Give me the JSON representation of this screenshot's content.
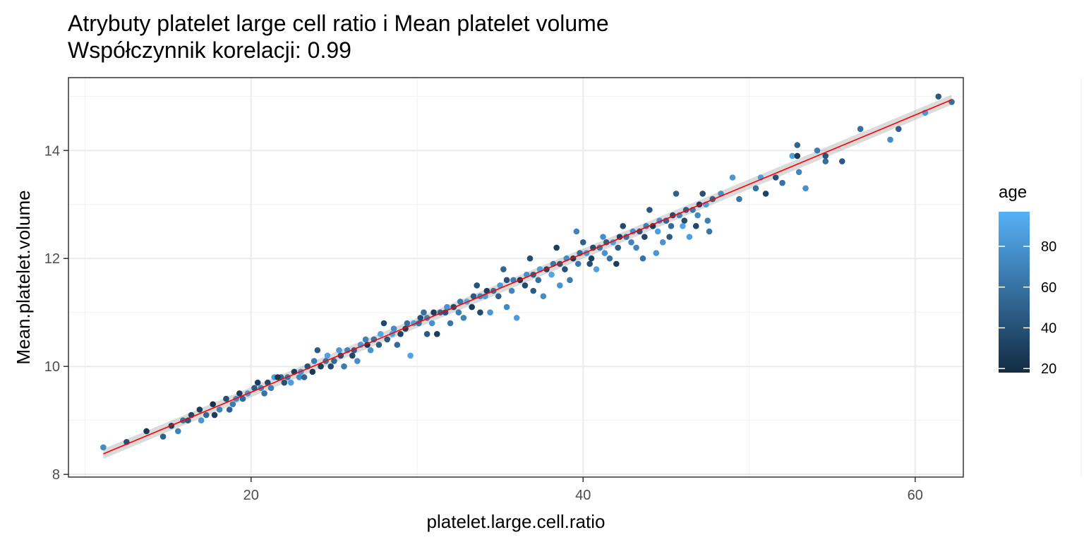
{
  "chart_data": {
    "type": "scatter",
    "title": "Atrybuty platelet large cell ratio i Mean platelet volume",
    "subtitle": "Współczynnik korelacji: 0.99",
    "xlabel": "platelet.large.cell.ratio",
    "ylabel": "Mean.platelet.volume",
    "xlim": [
      9,
      62.9
    ],
    "ylim": [
      7.95,
      15.35
    ],
    "x_ticks": [
      20,
      40,
      60
    ],
    "y_ticks": [
      8,
      10,
      12,
      14
    ],
    "x_tick_labels": [
      "20",
      "40",
      "60"
    ],
    "y_tick_labels": [
      "8",
      "10",
      "12",
      "14"
    ],
    "grid": true,
    "color": {
      "legend_title": "age",
      "range": [
        18,
        97
      ],
      "ticks": [
        20,
        40,
        60,
        80
      ],
      "tick_labels": [
        "20",
        "40",
        "60",
        "80"
      ],
      "low_color": "#132B43",
      "high_color": "#56B1F7",
      "legend_position": "right"
    },
    "trend_line": {
      "method": "linear fit",
      "color": "#FF0000",
      "x": [
        11.1,
        62.2
      ],
      "y": [
        8.38,
        14.94
      ]
    },
    "points": [
      [
        11.1,
        8.5,
        75
      ],
      [
        13.7,
        8.8,
        25
      ],
      [
        14.7,
        8.7,
        50
      ],
      [
        15.2,
        8.9,
        30
      ],
      [
        15.9,
        9.0,
        60
      ],
      [
        16.4,
        9.1,
        35
      ],
      [
        16.9,
        9.2,
        28
      ],
      [
        17.3,
        9.1,
        55
      ],
      [
        17.7,
        9.3,
        22
      ],
      [
        18.1,
        9.2,
        70
      ],
      [
        18.5,
        9.4,
        40
      ],
      [
        18.9,
        9.3,
        65
      ],
      [
        19.3,
        9.5,
        30
      ],
      [
        19.8,
        9.5,
        80
      ],
      [
        20.2,
        9.6,
        45
      ],
      [
        20.6,
        9.6,
        72
      ],
      [
        21.0,
        9.7,
        35
      ],
      [
        21.4,
        9.8,
        85
      ],
      [
        21.8,
        9.8,
        50
      ],
      [
        22.2,
        9.8,
        62
      ],
      [
        22.6,
        9.9,
        28
      ],
      [
        23.0,
        9.9,
        78
      ],
      [
        23.4,
        10.0,
        42
      ],
      [
        23.8,
        10.1,
        66
      ],
      [
        24.2,
        10.0,
        30
      ],
      [
        24.6,
        10.2,
        88
      ],
      [
        25.0,
        10.1,
        55
      ],
      [
        25.4,
        10.2,
        38
      ],
      [
        25.8,
        10.3,
        70
      ],
      [
        26.2,
        10.3,
        48
      ],
      [
        26.6,
        10.4,
        82
      ],
      [
        27.0,
        10.4,
        25
      ],
      [
        27.4,
        10.5,
        60
      ],
      [
        27.8,
        10.6,
        90
      ],
      [
        28.2,
        10.5,
        44
      ],
      [
        28.6,
        10.7,
        75
      ],
      [
        29.0,
        10.6,
        33
      ],
      [
        29.4,
        10.8,
        58
      ],
      [
        29.8,
        10.8,
        86
      ],
      [
        30.2,
        10.9,
        40
      ],
      [
        30.6,
        10.9,
        68
      ],
      [
        31.0,
        11.0,
        28
      ],
      [
        31.4,
        11.0,
        52
      ],
      [
        31.8,
        11.1,
        80
      ],
      [
        32.2,
        11.1,
        36
      ],
      [
        32.6,
        11.2,
        64
      ],
      [
        33.0,
        11.2,
        92
      ],
      [
        33.4,
        11.3,
        46
      ],
      [
        33.8,
        11.3,
        72
      ],
      [
        34.2,
        11.4,
        30
      ],
      [
        34.6,
        11.4,
        58
      ],
      [
        35.0,
        11.5,
        84
      ],
      [
        35.4,
        11.6,
        40
      ],
      [
        35.8,
        11.6,
        66
      ],
      [
        36.2,
        11.6,
        24
      ],
      [
        36.6,
        11.7,
        78
      ],
      [
        37.0,
        11.7,
        50
      ],
      [
        37.4,
        11.8,
        88
      ],
      [
        37.8,
        11.8,
        34
      ],
      [
        38.2,
        11.9,
        62
      ],
      [
        38.6,
        11.9,
        44
      ],
      [
        39.0,
        12.0,
        74
      ],
      [
        39.4,
        12.0,
        28
      ],
      [
        39.8,
        12.1,
        56
      ],
      [
        40.2,
        12.1,
        82
      ],
      [
        40.6,
        12.2,
        38
      ],
      [
        41.0,
        12.2,
        66
      ],
      [
        41.4,
        12.3,
        48
      ],
      [
        41.8,
        12.3,
        86
      ],
      [
        42.2,
        12.4,
        32
      ],
      [
        42.6,
        12.4,
        60
      ],
      [
        43.0,
        12.5,
        76
      ],
      [
        43.4,
        12.5,
        42
      ],
      [
        43.8,
        12.6,
        68
      ],
      [
        44.2,
        12.6,
        26
      ],
      [
        44.6,
        12.7,
        80
      ],
      [
        45.0,
        12.7,
        54
      ],
      [
        45.4,
        12.8,
        36
      ],
      [
        45.8,
        12.8,
        72
      ],
      [
        46.2,
        12.9,
        48
      ],
      [
        46.6,
        12.9,
        64
      ],
      [
        47.0,
        13.0,
        30
      ],
      [
        47.4,
        13.0,
        84
      ],
      [
        47.8,
        13.1,
        52
      ],
      [
        19.5,
        9.4,
        55
      ],
      [
        20.4,
        9.7,
        30
      ],
      [
        21.2,
        9.6,
        68
      ],
      [
        22.0,
        9.7,
        40
      ],
      [
        22.9,
        9.8,
        75
      ],
      [
        23.7,
        9.9,
        25
      ],
      [
        24.5,
        10.1,
        62
      ],
      [
        25.3,
        10.3,
        82
      ],
      [
        26.1,
        10.2,
        35
      ],
      [
        26.9,
        10.5,
        70
      ],
      [
        27.7,
        10.4,
        48
      ],
      [
        28.5,
        10.6,
        88
      ],
      [
        29.3,
        10.7,
        30
      ],
      [
        30.1,
        10.8,
        60
      ],
      [
        30.9,
        10.8,
        78
      ],
      [
        31.7,
        11.0,
        42
      ],
      [
        32.5,
        11.0,
        66
      ],
      [
        33.3,
        11.1,
        26
      ],
      [
        34.1,
        11.3,
        84
      ],
      [
        34.9,
        11.3,
        50
      ],
      [
        35.7,
        11.4,
        72
      ],
      [
        36.5,
        11.5,
        36
      ],
      [
        37.3,
        11.6,
        58
      ],
      [
        38.1,
        11.7,
        90
      ],
      [
        38.9,
        11.8,
        40
      ],
      [
        39.7,
        11.9,
        64
      ],
      [
        40.5,
        12.0,
        30
      ],
      [
        41.3,
        12.1,
        80
      ],
      [
        42.1,
        12.2,
        46
      ],
      [
        42.9,
        12.3,
        70
      ],
      [
        43.7,
        12.4,
        34
      ],
      [
        44.5,
        12.5,
        86
      ],
      [
        45.3,
        12.6,
        56
      ],
      [
        46.1,
        12.7,
        38
      ],
      [
        46.9,
        12.8,
        74
      ],
      [
        24.0,
        10.3,
        45
      ],
      [
        25.6,
        10.0,
        65
      ],
      [
        27.2,
        10.3,
        80
      ],
      [
        28.0,
        10.8,
        35
      ],
      [
        29.6,
        10.2,
        90
      ],
      [
        30.4,
        11.0,
        58
      ],
      [
        31.2,
        10.6,
        28
      ],
      [
        32.8,
        10.9,
        70
      ],
      [
        33.6,
        11.5,
        42
      ],
      [
        34.4,
        11.0,
        82
      ],
      [
        35.2,
        11.8,
        52
      ],
      [
        36.0,
        10.9,
        85
      ],
      [
        36.8,
        12.0,
        38
      ],
      [
        37.6,
        11.3,
        76
      ],
      [
        38.4,
        12.2,
        30
      ],
      [
        39.2,
        11.6,
        66
      ],
      [
        40.0,
        12.3,
        48
      ],
      [
        40.8,
        11.8,
        88
      ],
      [
        41.6,
        12.0,
        60
      ],
      [
        42.4,
        12.6,
        36
      ],
      [
        43.2,
        12.2,
        72
      ],
      [
        44.0,
        12.9,
        44
      ],
      [
        44.8,
        12.3,
        80
      ],
      [
        45.6,
        13.2,
        50
      ],
      [
        46.4,
        12.4,
        86
      ],
      [
        47.2,
        13.2,
        40
      ],
      [
        47.6,
        12.5,
        62
      ],
      [
        48.3,
        13.2,
        78
      ],
      [
        49.0,
        13.5,
        82
      ],
      [
        49.4,
        13.1,
        62
      ],
      [
        50.4,
        13.3,
        58
      ],
      [
        50.7,
        13.5,
        86
      ],
      [
        51.0,
        13.2,
        32
      ],
      [
        51.6,
        13.5,
        40
      ],
      [
        52.0,
        13.4,
        60
      ],
      [
        52.6,
        13.9,
        88
      ],
      [
        52.9,
        13.9,
        28
      ],
      [
        52.9,
        14.1,
        52
      ],
      [
        53.0,
        13.6,
        72
      ],
      [
        53.4,
        13.3,
        78
      ],
      [
        54.1,
        14.0,
        66
      ],
      [
        54.6,
        13.8,
        58
      ],
      [
        54.6,
        13.9,
        42
      ],
      [
        55.6,
        13.8,
        46
      ],
      [
        56.7,
        14.4,
        58
      ],
      [
        58.5,
        14.2,
        76
      ],
      [
        59.0,
        14.4,
        48
      ],
      [
        60.6,
        14.7,
        82
      ],
      [
        61.4,
        15.0,
        44
      ],
      [
        62.2,
        14.9,
        58
      ],
      [
        12.5,
        8.6,
        40
      ],
      [
        15.6,
        8.8,
        70
      ],
      [
        16.2,
        9.0,
        45
      ],
      [
        17.0,
        9.0,
        82
      ],
      [
        17.8,
        9.1,
        28
      ],
      [
        18.7,
        9.2,
        50
      ],
      [
        19.1,
        9.4,
        74
      ],
      [
        20.8,
        9.5,
        60
      ],
      [
        21.6,
        9.8,
        26
      ],
      [
        22.4,
        9.7,
        86
      ],
      [
        23.2,
        9.8,
        52
      ],
      [
        24.8,
        10.0,
        36
      ],
      [
        26.4,
        10.1,
        76
      ],
      [
        28.8,
        10.4,
        56
      ],
      [
        30.6,
        10.6,
        46
      ],
      [
        32.0,
        10.8,
        62
      ],
      [
        33.8,
        11.0,
        36
      ],
      [
        35.4,
        11.1,
        74
      ],
      [
        37.0,
        11.4,
        46
      ],
      [
        38.6,
        11.5,
        80
      ],
      [
        39.6,
        12.5,
        70
      ],
      [
        40.4,
        11.9,
        38
      ],
      [
        41.2,
        12.4,
        76
      ],
      [
        42.0,
        11.9,
        30
      ],
      [
        43.6,
        12.0,
        60
      ],
      [
        44.4,
        12.1,
        82
      ],
      [
        45.2,
        12.4,
        46
      ],
      [
        46.0,
        12.6,
        90
      ],
      [
        46.8,
        12.6,
        34
      ],
      [
        47.5,
        12.7,
        68
      ]
    ]
  }
}
